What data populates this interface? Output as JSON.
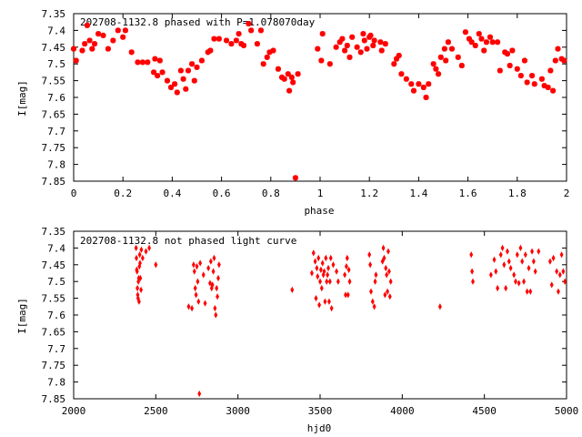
{
  "chart_data": [
    {
      "type": "scatter",
      "title": "202708-1132.8 phased with P=1.078070day",
      "xlabel": "phase",
      "ylabel": "I[mag]",
      "xlim": [
        0,
        2
      ],
      "ylim": [
        7.85,
        7.35
      ],
      "y_inverted": true,
      "grid": false,
      "color": "#ff0000",
      "xticks": [
        "0",
        "0.2",
        "0.4",
        "0.6",
        "0.8",
        "1",
        "1.2",
        "1.4",
        "1.6",
        "1.8",
        "2"
      ],
      "yticks": [
        "7.35",
        "7.4",
        "7.45",
        "7.5",
        "7.55",
        "7.6",
        "7.65",
        "7.7",
        "7.75",
        "7.8",
        "7.85"
      ],
      "points": [
        [
          0.0,
          7.455
        ],
        [
          0.01,
          7.49
        ],
        [
          0.035,
          7.46
        ],
        [
          0.045,
          7.44
        ],
        [
          0.055,
          7.385
        ],
        [
          0.065,
          7.43
        ],
        [
          0.075,
          7.455
        ],
        [
          0.085,
          7.44
        ],
        [
          0.1,
          7.41
        ],
        [
          0.12,
          7.415
        ],
        [
          0.14,
          7.455
        ],
        [
          0.16,
          7.43
        ],
        [
          0.18,
          7.4
        ],
        [
          0.2,
          7.42
        ],
        [
          0.21,
          7.4
        ],
        [
          0.235,
          7.465
        ],
        [
          0.26,
          7.495
        ],
        [
          0.28,
          7.495
        ],
        [
          0.3,
          7.495
        ],
        [
          0.325,
          7.525
        ],
        [
          0.33,
          7.485
        ],
        [
          0.34,
          7.535
        ],
        [
          0.35,
          7.49
        ],
        [
          0.36,
          7.525
        ],
        [
          0.38,
          7.55
        ],
        [
          0.395,
          7.57
        ],
        [
          0.41,
          7.56
        ],
        [
          0.42,
          7.585
        ],
        [
          0.435,
          7.52
        ],
        [
          0.445,
          7.545
        ],
        [
          0.455,
          7.575
        ],
        [
          0.465,
          7.52
        ],
        [
          0.48,
          7.5
        ],
        [
          0.49,
          7.55
        ],
        [
          0.5,
          7.51
        ],
        [
          0.52,
          7.49
        ],
        [
          0.545,
          7.465
        ],
        [
          0.555,
          7.46
        ],
        [
          0.57,
          7.425
        ],
        [
          0.59,
          7.425
        ],
        [
          0.62,
          7.43
        ],
        [
          0.64,
          7.44
        ],
        [
          0.66,
          7.43
        ],
        [
          0.67,
          7.41
        ],
        [
          0.68,
          7.44
        ],
        [
          0.69,
          7.445
        ],
        [
          0.71,
          7.38
        ],
        [
          0.72,
          7.4
        ],
        [
          0.745,
          7.44
        ],
        [
          0.76,
          7.4
        ],
        [
          0.77,
          7.5
        ],
        [
          0.785,
          7.48
        ],
        [
          0.795,
          7.465
        ],
        [
          0.81,
          7.46
        ],
        [
          0.83,
          7.515
        ],
        [
          0.845,
          7.54
        ],
        [
          0.855,
          7.545
        ],
        [
          0.87,
          7.53
        ],
        [
          0.875,
          7.58
        ],
        [
          0.885,
          7.54
        ],
        [
          0.89,
          7.555
        ],
        [
          0.9,
          7.84
        ],
        [
          0.91,
          7.53
        ],
        [
          0.99,
          7.455
        ],
        [
          1.005,
          7.49
        ],
        [
          1.01,
          7.41
        ],
        [
          1.04,
          7.5
        ],
        [
          1.065,
          7.45
        ],
        [
          1.08,
          7.435
        ],
        [
          1.09,
          7.425
        ],
        [
          1.1,
          7.46
        ],
        [
          1.11,
          7.445
        ],
        [
          1.12,
          7.48
        ],
        [
          1.13,
          7.42
        ],
        [
          1.15,
          7.45
        ],
        [
          1.165,
          7.465
        ],
        [
          1.175,
          7.41
        ],
        [
          1.18,
          7.43
        ],
        [
          1.19,
          7.455
        ],
        [
          1.2,
          7.42
        ],
        [
          1.205,
          7.415
        ],
        [
          1.215,
          7.445
        ],
        [
          1.22,
          7.43
        ],
        [
          1.245,
          7.435
        ],
        [
          1.25,
          7.46
        ],
        [
          1.265,
          7.44
        ],
        [
          1.3,
          7.5
        ],
        [
          1.31,
          7.485
        ],
        [
          1.32,
          7.475
        ],
        [
          1.33,
          7.53
        ],
        [
          1.35,
          7.545
        ],
        [
          1.37,
          7.56
        ],
        [
          1.38,
          7.58
        ],
        [
          1.4,
          7.56
        ],
        [
          1.42,
          7.57
        ],
        [
          1.43,
          7.6
        ],
        [
          1.44,
          7.56
        ],
        [
          1.46,
          7.5
        ],
        [
          1.47,
          7.515
        ],
        [
          1.48,
          7.53
        ],
        [
          1.49,
          7.48
        ],
        [
          1.505,
          7.455
        ],
        [
          1.51,
          7.49
        ],
        [
          1.52,
          7.435
        ],
        [
          1.535,
          7.455
        ],
        [
          1.56,
          7.48
        ],
        [
          1.575,
          7.505
        ],
        [
          1.59,
          7.405
        ],
        [
          1.605,
          7.425
        ],
        [
          1.615,
          7.435
        ],
        [
          1.63,
          7.445
        ],
        [
          1.645,
          7.41
        ],
        [
          1.655,
          7.425
        ],
        [
          1.665,
          7.46
        ],
        [
          1.675,
          7.435
        ],
        [
          1.69,
          7.42
        ],
        [
          1.7,
          7.435
        ],
        [
          1.72,
          7.435
        ],
        [
          1.73,
          7.52
        ],
        [
          1.75,
          7.465
        ],
        [
          1.76,
          7.47
        ],
        [
          1.77,
          7.505
        ],
        [
          1.78,
          7.46
        ],
        [
          1.8,
          7.515
        ],
        [
          1.815,
          7.535
        ],
        [
          1.83,
          7.49
        ],
        [
          1.84,
          7.555
        ],
        [
          1.86,
          7.535
        ],
        [
          1.87,
          7.56
        ],
        [
          1.9,
          7.545
        ],
        [
          1.91,
          7.565
        ],
        [
          1.925,
          7.57
        ],
        [
          1.935,
          7.52
        ],
        [
          1.945,
          7.58
        ],
        [
          1.955,
          7.49
        ],
        [
          1.965,
          7.455
        ],
        [
          1.98,
          7.485
        ],
        [
          1.99,
          7.49
        ]
      ]
    },
    {
      "type": "scatter",
      "title": "202708-1132.8 not phased light curve",
      "xlabel": "hjd0",
      "ylabel": "I[mag]",
      "xlim": [
        2000,
        5000
      ],
      "ylim": [
        7.85,
        7.35
      ],
      "y_inverted": true,
      "grid": false,
      "color": "#ff0000",
      "xticks": [
        "2000",
        "2500",
        "3000",
        "3500",
        "4000",
        "4500",
        "5000"
      ],
      "yticks": [
        "7.35",
        "7.4",
        "7.45",
        "7.5",
        "7.55",
        "7.6",
        "7.65",
        "7.7",
        "7.75",
        "7.8",
        "7.85"
      ],
      "points": [
        [
          2380,
          7.4
        ],
        [
          2382,
          7.43
        ],
        [
          2384,
          7.465
        ],
        [
          2386,
          7.47
        ],
        [
          2388,
          7.52
        ],
        [
          2390,
          7.54
        ],
        [
          2392,
          7.55
        ],
        [
          2394,
          7.5
        ],
        [
          2396,
          7.49
        ],
        [
          2398,
          7.56
        ],
        [
          2400,
          7.455
        ],
        [
          2402,
          7.42
        ],
        [
          2404,
          7.445
        ],
        [
          2406,
          7.49
        ],
        [
          2410,
          7.525
        ],
        [
          2412,
          7.405
        ],
        [
          2420,
          7.43
        ],
        [
          2440,
          7.41
        ],
        [
          2460,
          7.4
        ],
        [
          2500,
          7.45
        ],
        [
          2700,
          7.575
        ],
        [
          2720,
          7.58
        ],
        [
          2730,
          7.45
        ],
        [
          2735,
          7.47
        ],
        [
          2740,
          7.52
        ],
        [
          2745,
          7.54
        ],
        [
          2750,
          7.455
        ],
        [
          2755,
          7.5
        ],
        [
          2760,
          7.56
        ],
        [
          2765,
          7.835
        ],
        [
          2770,
          7.445
        ],
        [
          2790,
          7.48
        ],
        [
          2800,
          7.565
        ],
        [
          2820,
          7.46
        ],
        [
          2830,
          7.505
        ],
        [
          2835,
          7.44
        ],
        [
          2840,
          7.52
        ],
        [
          2845,
          7.51
        ],
        [
          2850,
          7.47
        ],
        [
          2855,
          7.43
        ],
        [
          2860,
          7.58
        ],
        [
          2865,
          7.6
        ],
        [
          2870,
          7.52
        ],
        [
          2875,
          7.545
        ],
        [
          2880,
          7.49
        ],
        [
          2885,
          7.45
        ],
        [
          3330,
          7.525
        ],
        [
          3450,
          7.475
        ],
        [
          3460,
          7.415
        ],
        [
          3470,
          7.44
        ],
        [
          3475,
          7.55
        ],
        [
          3480,
          7.46
        ],
        [
          3485,
          7.485
        ],
        [
          3490,
          7.43
        ],
        [
          3495,
          7.57
        ],
        [
          3500,
          7.5
        ],
        [
          3505,
          7.465
        ],
        [
          3510,
          7.52
        ],
        [
          3515,
          7.445
        ],
        [
          3520,
          7.48
        ],
        [
          3525,
          7.47
        ],
        [
          3530,
          7.56
        ],
        [
          3535,
          7.43
        ],
        [
          3540,
          7.5
        ],
        [
          3545,
          7.48
        ],
        [
          3550,
          7.46
        ],
        [
          3555,
          7.56
        ],
        [
          3560,
          7.5
        ],
        [
          3565,
          7.43
        ],
        [
          3570,
          7.58
        ],
        [
          3580,
          7.45
        ],
        [
          3600,
          7.47
        ],
        [
          3610,
          7.5
        ],
        [
          3650,
          7.48
        ],
        [
          3655,
          7.54
        ],
        [
          3660,
          7.455
        ],
        [
          3665,
          7.43
        ],
        [
          3670,
          7.54
        ],
        [
          3675,
          7.465
        ],
        [
          3680,
          7.5
        ],
        [
          3800,
          7.42
        ],
        [
          3805,
          7.45
        ],
        [
          3810,
          7.53
        ],
        [
          3820,
          7.56
        ],
        [
          3830,
          7.575
        ],
        [
          3835,
          7.5
        ],
        [
          3840,
          7.48
        ],
        [
          3880,
          7.44
        ],
        [
          3885,
          7.4
        ],
        [
          3890,
          7.43
        ],
        [
          3895,
          7.54
        ],
        [
          3900,
          7.46
        ],
        [
          3905,
          7.48
        ],
        [
          3910,
          7.53
        ],
        [
          3915,
          7.41
        ],
        [
          3920,
          7.47
        ],
        [
          3925,
          7.545
        ],
        [
          3930,
          7.5
        ],
        [
          4230,
          7.575
        ],
        [
          4420,
          7.42
        ],
        [
          4425,
          7.47
        ],
        [
          4430,
          7.5
        ],
        [
          4540,
          7.48
        ],
        [
          4560,
          7.435
        ],
        [
          4570,
          7.47
        ],
        [
          4580,
          7.52
        ],
        [
          4600,
          7.42
        ],
        [
          4610,
          7.4
        ],
        [
          4620,
          7.45
        ],
        [
          4630,
          7.52
        ],
        [
          4640,
          7.41
        ],
        [
          4650,
          7.44
        ],
        [
          4660,
          7.46
        ],
        [
          4680,
          7.48
        ],
        [
          4690,
          7.5
        ],
        [
          4700,
          7.42
        ],
        [
          4710,
          7.505
        ],
        [
          4720,
          7.4
        ],
        [
          4730,
          7.44
        ],
        [
          4740,
          7.5
        ],
        [
          4750,
          7.42
        ],
        [
          4760,
          7.53
        ],
        [
          4770,
          7.46
        ],
        [
          4780,
          7.53
        ],
        [
          4790,
          7.41
        ],
        [
          4800,
          7.44
        ],
        [
          4810,
          7.47
        ],
        [
          4830,
          7.41
        ],
        [
          4900,
          7.44
        ],
        [
          4910,
          7.51
        ],
        [
          4920,
          7.43
        ],
        [
          4940,
          7.47
        ],
        [
          4950,
          7.53
        ],
        [
          4960,
          7.48
        ],
        [
          4970,
          7.42
        ],
        [
          4980,
          7.47
        ],
        [
          4990,
          7.5
        ]
      ]
    }
  ]
}
